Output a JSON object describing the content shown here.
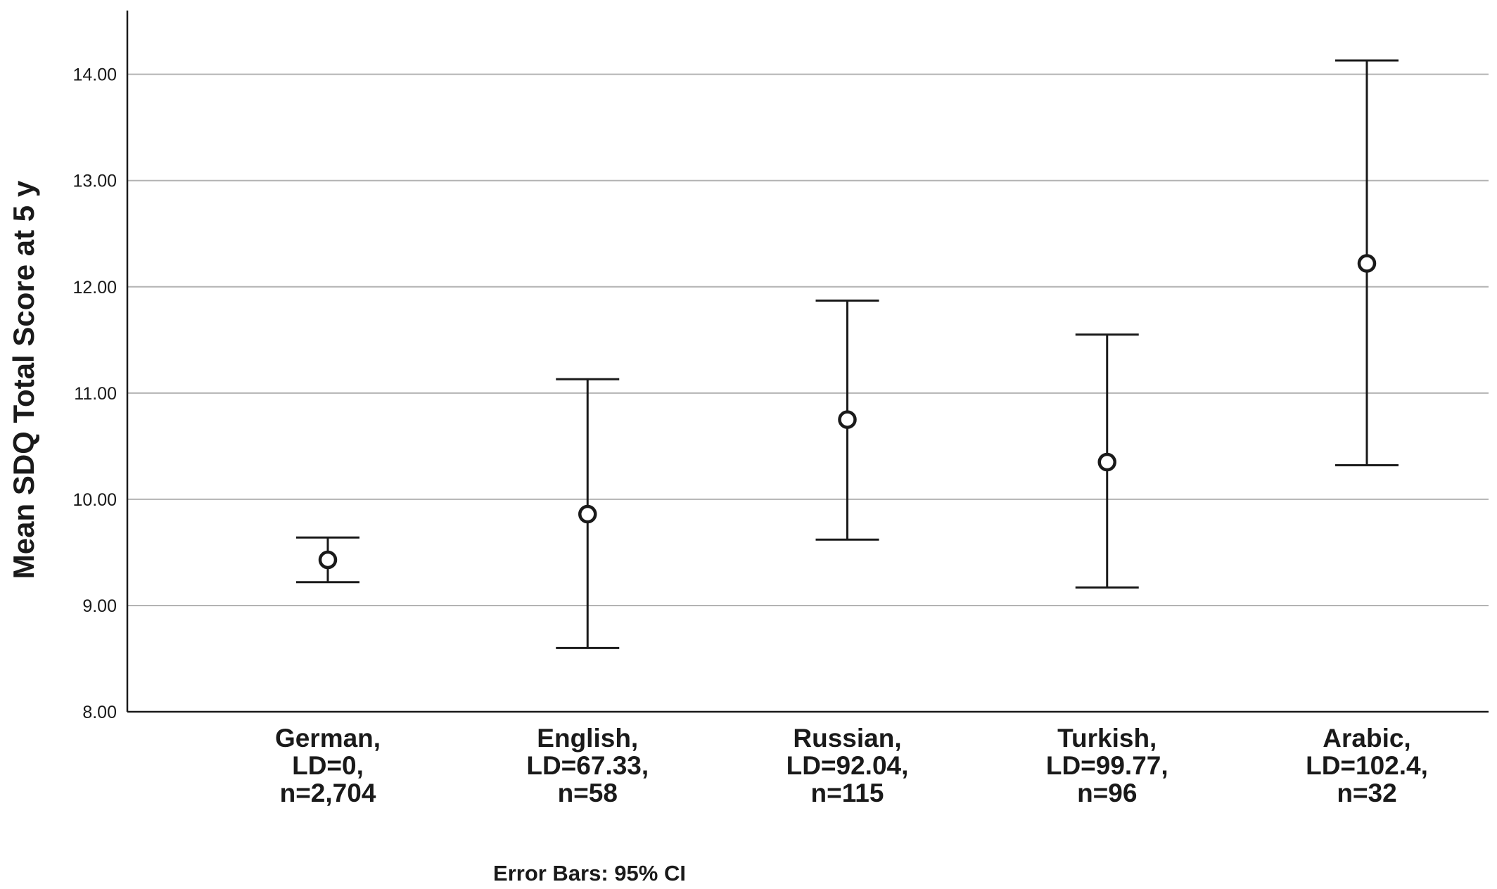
{
  "chart_data": {
    "type": "errorbar",
    "ylabel": "Mean SDQ Total Score at 5 y",
    "xlabel": "",
    "ylim": [
      8.0,
      14.6
    ],
    "yticks": [
      "8.00",
      "9.00",
      "10.00",
      "11.00",
      "12.00",
      "13.00",
      "14.00"
    ],
    "grid": true,
    "categories": [
      {
        "lines": [
          "German,",
          "LD=0,",
          "n=2,704"
        ],
        "mean": 9.43,
        "ci_low": 9.22,
        "ci_high": 9.64
      },
      {
        "lines": [
          "English,",
          "LD=67.33,",
          "n=58"
        ],
        "mean": 9.86,
        "ci_low": 8.6,
        "ci_high": 11.13
      },
      {
        "lines": [
          "Russian,",
          "LD=92.04,",
          "n=115"
        ],
        "mean": 10.75,
        "ci_low": 9.62,
        "ci_high": 11.87
      },
      {
        "lines": [
          "Turkish,",
          "LD=99.77,",
          "n=96"
        ],
        "mean": 10.35,
        "ci_low": 9.17,
        "ci_high": 11.55
      },
      {
        "lines": [
          "Arabic,",
          "LD=102.4,",
          "n=32"
        ],
        "mean": 12.22,
        "ci_low": 10.32,
        "ci_high": 14.13
      }
    ],
    "footnote": "Error Bars: 95% CI",
    "colors": {
      "marks": "#1a1a1a",
      "grid": "#b3b3b3",
      "axis": "#1a1a1a"
    }
  }
}
